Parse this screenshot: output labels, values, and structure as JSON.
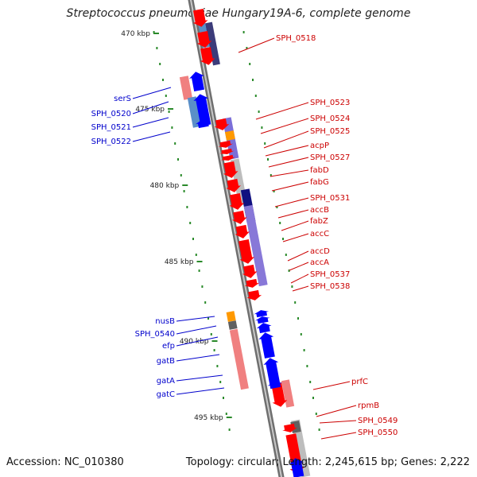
{
  "title": "Streptococcus pneumoniae Hungary19A-6, complete genome",
  "footer": {
    "accession": "Accession: NC_010380",
    "summary": "Topology: circular; Length: 2,245,615 bp; Genes: 2,222"
  },
  "colors": {
    "backbone": "#8a8a8a",
    "kbp_tick": "#2a8a2a",
    "forward_gene": "#ff0000",
    "reverse_gene": "#0000ff",
    "forward_label": "#cc0000",
    "reverse_label": "#0000cc"
  },
  "ruler": [
    "470 kbp",
    "475 kbp",
    "480 kbp",
    "485 kbp",
    "490 kbp",
    "495 kbp"
  ],
  "forward_labels": [
    "SPH_0518",
    "SPH_0523",
    "SPH_0524",
    "SPH_0525",
    "acpP",
    "SPH_0527",
    "fabD",
    "fabG",
    "SPH_0531",
    "accB",
    "fabZ",
    "accC",
    "accD",
    "accA",
    "SPH_0537",
    "SPH_0538",
    "prfC",
    "rpmB",
    "SPH_0549",
    "SPH_0550"
  ],
  "reverse_labels": [
    "serS",
    "SPH_0520",
    "SPH_0521",
    "SPH_0522",
    "nusB",
    "SPH_0540",
    "efp",
    "gatB",
    "gatA",
    "gatC"
  ]
}
